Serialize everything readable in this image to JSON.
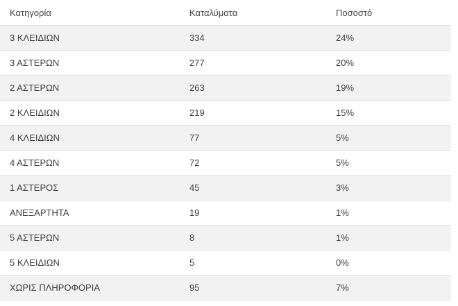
{
  "colors": {
    "stripe_background": "#f2f2f2",
    "row_background": "#ffffff",
    "border": "#e0e0e0",
    "header_text": "#454545",
    "cell_text": "#3e3e3e"
  },
  "chart_data": {
    "type": "table",
    "columns": [
      "Κατηγορία",
      "Καταλύματα",
      "Ποσοστό"
    ],
    "rows": [
      {
        "category": "3 ΚΛΕΙΔΙΩΝ",
        "accommodations": "334",
        "percentage": "24%"
      },
      {
        "category": "3 ΑΣΤΕΡΩΝ",
        "accommodations": "277",
        "percentage": "20%"
      },
      {
        "category": "2 ΑΣΤΕΡΩΝ",
        "accommodations": "263",
        "percentage": "19%"
      },
      {
        "category": "2 ΚΛΕΙΔΙΩΝ",
        "accommodations": "219",
        "percentage": "15%"
      },
      {
        "category": "4 ΚΛΕΙΔΙΩΝ",
        "accommodations": "77",
        "percentage": "5%"
      },
      {
        "category": "4 ΑΣΤΕΡΩΝ",
        "accommodations": "72",
        "percentage": "5%"
      },
      {
        "category": "1 ΑΣΤΕΡΟΣ",
        "accommodations": "45",
        "percentage": "3%"
      },
      {
        "category": "ΑΝΕΞΑΡΤΗΤΑ",
        "accommodations": "19",
        "percentage": "1%"
      },
      {
        "category": "5 ΑΣΤΕΡΩΝ",
        "accommodations": "8",
        "percentage": "1%"
      },
      {
        "category": "5 ΚΛΕΙΔΙΩΝ",
        "accommodations": "5",
        "percentage": "0%"
      },
      {
        "category": "ΧΩΡΙΣ ΠΛΗΡΟΦΟΡΙΑ",
        "accommodations": "95",
        "percentage": "7%"
      }
    ]
  }
}
